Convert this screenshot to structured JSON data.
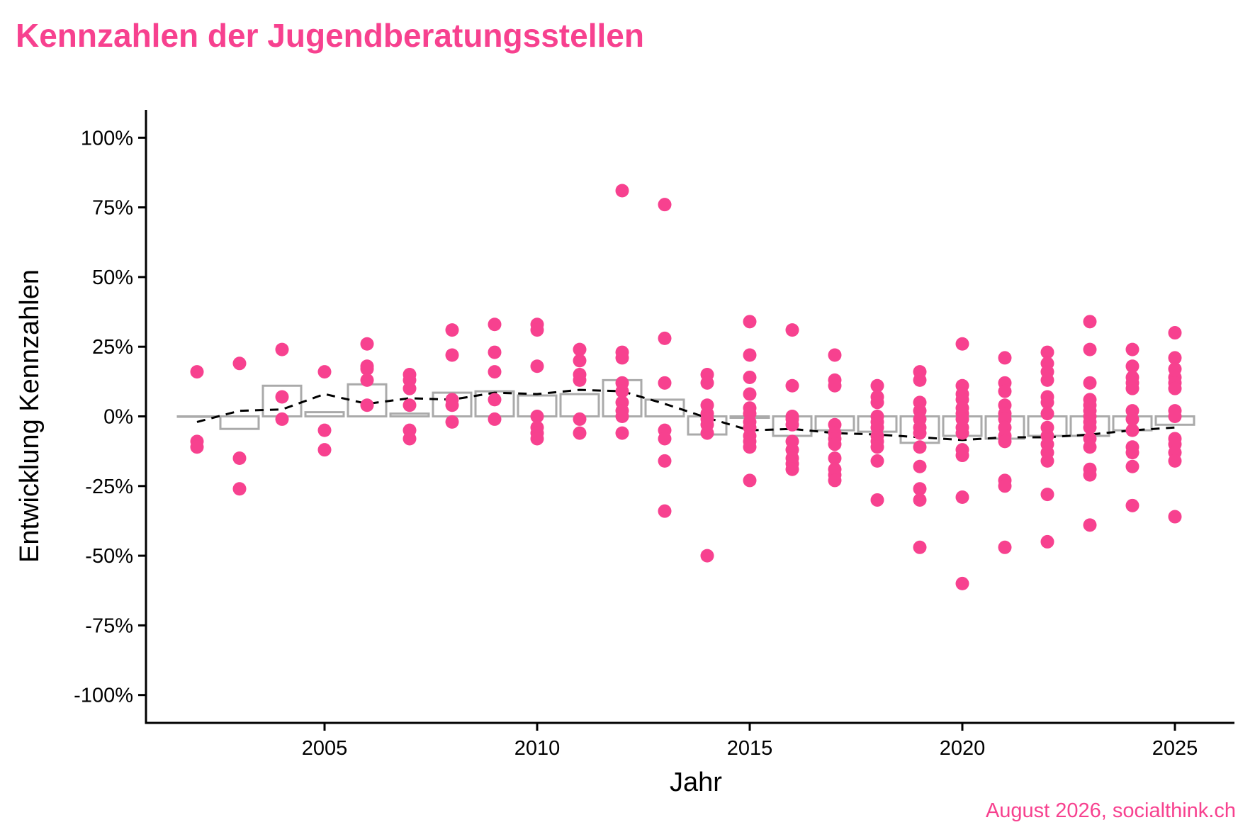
{
  "title": "Kennzahlen der Jugendberatungsstellen",
  "caption": "August 2026, socialthink.ch",
  "colors": {
    "accent": "#f7418f",
    "bar_outline": "#aaaaaa",
    "trend_line": "#000000",
    "axis": "#000000"
  },
  "chart_data": {
    "type": "scatter",
    "title": "Kennzahlen der Jugendberatungsstellen",
    "xlabel": "Jahr",
    "ylabel": "Entwicklung Kennzahlen",
    "xlim": [
      2000.8,
      2026.4
    ],
    "ylim": [
      -1.1,
      1.1
    ],
    "x_ticks": [
      2005,
      2010,
      2015,
      2020,
      2025
    ],
    "x_tick_labels": [
      "2005",
      "2010",
      "2015",
      "2020",
      "2025"
    ],
    "y_ticks": [
      1.0,
      0.75,
      0.5,
      0.25,
      0.0,
      -0.25,
      -0.5,
      -0.75,
      -1.0
    ],
    "y_tick_labels": [
      "100%",
      "75%",
      "50%",
      "25%",
      "0%",
      "-25%",
      "-50%",
      "-75%",
      "-100%"
    ],
    "grid": false,
    "legend": "none",
    "points": [
      {
        "year": 2002,
        "values": [
          0.16,
          -0.09,
          -0.11
        ]
      },
      {
        "year": 2003,
        "values": [
          0.19,
          -0.15,
          -0.26
        ]
      },
      {
        "year": 2004,
        "values": [
          0.24,
          0.07,
          -0.01
        ]
      },
      {
        "year": 2005,
        "values": [
          0.16,
          -0.05,
          -0.12
        ]
      },
      {
        "year": 2006,
        "values": [
          0.26,
          0.18,
          0.17,
          0.13,
          0.04
        ]
      },
      {
        "year": 2007,
        "values": [
          0.15,
          0.13,
          0.1,
          0.04,
          -0.05,
          -0.08
        ]
      },
      {
        "year": 2008,
        "values": [
          0.31,
          0.22,
          0.06,
          0.04,
          -0.02
        ]
      },
      {
        "year": 2009,
        "values": [
          0.33,
          0.23,
          0.16,
          0.06,
          -0.01
        ]
      },
      {
        "year": 2010,
        "values": [
          0.33,
          0.31,
          0.18,
          -0.0,
          -0.04,
          -0.06,
          -0.08
        ]
      },
      {
        "year": 2011,
        "values": [
          0.24,
          0.2,
          0.15,
          0.13,
          -0.01,
          -0.06
        ]
      },
      {
        "year": 2012,
        "values": [
          0.81,
          0.23,
          0.21,
          0.12,
          0.09,
          0.05,
          0.02,
          0.0,
          -0.06
        ]
      },
      {
        "year": 2013,
        "values": [
          0.76,
          0.28,
          0.12,
          -0.05,
          -0.08,
          -0.16,
          -0.34
        ]
      },
      {
        "year": 2014,
        "values": [
          0.15,
          0.12,
          0.04,
          0.01,
          -0.01,
          -0.03,
          -0.06,
          -0.5
        ]
      },
      {
        "year": 2015,
        "values": [
          0.34,
          0.22,
          0.14,
          0.08,
          0.03,
          0.01,
          -0.02,
          -0.04,
          -0.07,
          -0.09,
          -0.11,
          -0.23
        ]
      },
      {
        "year": 2016,
        "values": [
          0.31,
          0.11,
          0.0,
          -0.01,
          -0.03,
          -0.09,
          -0.12,
          -0.15,
          -0.17,
          -0.19
        ]
      },
      {
        "year": 2017,
        "values": [
          0.22,
          0.13,
          0.11,
          -0.03,
          -0.06,
          -0.08,
          -0.1,
          -0.15,
          -0.19,
          -0.21,
          -0.23
        ]
      },
      {
        "year": 2018,
        "values": [
          0.11,
          0.07,
          0.05,
          0.0,
          -0.02,
          -0.04,
          -0.07,
          -0.09,
          -0.11,
          -0.16,
          -0.3
        ]
      },
      {
        "year": 2019,
        "values": [
          0.16,
          0.13,
          0.05,
          0.02,
          -0.01,
          -0.04,
          -0.06,
          -0.11,
          -0.18,
          -0.26,
          -0.3,
          -0.47
        ]
      },
      {
        "year": 2020,
        "values": [
          0.26,
          0.11,
          0.08,
          0.06,
          0.03,
          0.01,
          -0.01,
          -0.04,
          -0.06,
          -0.12,
          -0.14,
          -0.29,
          -0.6
        ]
      },
      {
        "year": 2021,
        "values": [
          0.21,
          0.12,
          0.09,
          0.04,
          0.01,
          -0.01,
          -0.04,
          -0.07,
          -0.09,
          -0.23,
          -0.25,
          -0.47
        ]
      },
      {
        "year": 2022,
        "values": [
          0.23,
          0.19,
          0.16,
          0.13,
          0.07,
          0.05,
          0.01,
          -0.04,
          -0.07,
          -0.1,
          -0.13,
          -0.16,
          -0.28,
          -0.45
        ]
      },
      {
        "year": 2023,
        "values": [
          0.34,
          0.24,
          0.12,
          0.06,
          0.04,
          0.02,
          0.0,
          -0.02,
          -0.04,
          -0.08,
          -0.11,
          -0.19,
          -0.21,
          -0.39
        ]
      },
      {
        "year": 2024,
        "values": [
          0.24,
          0.18,
          0.14,
          0.12,
          0.1,
          0.02,
          -0.01,
          -0.05,
          -0.11,
          -0.13,
          -0.18,
          -0.32
        ]
      },
      {
        "year": 2025,
        "values": [
          0.3,
          0.21,
          0.17,
          0.14,
          0.12,
          0.1,
          0.02,
          0.0,
          -0.08,
          -0.1,
          -0.13,
          -0.16,
          -0.36
        ]
      }
    ],
    "bars": {
      "name": "",
      "x": [
        2002,
        2003,
        2004,
        2005,
        2006,
        2007,
        2008,
        2009,
        2010,
        2011,
        2012,
        2013,
        2014,
        2015,
        2016,
        2017,
        2018,
        2019,
        2020,
        2021,
        2022,
        2023,
        2024,
        2025
      ],
      "values": [
        0.0,
        -0.045,
        0.11,
        0.015,
        0.115,
        0.01,
        0.085,
        0.09,
        0.075,
        0.08,
        0.13,
        0.06,
        -0.065,
        -0.005,
        -0.07,
        -0.05,
        -0.055,
        -0.095,
        -0.07,
        -0.08,
        -0.07,
        -0.07,
        -0.05,
        -0.03
      ]
    },
    "trend_line": {
      "name": "",
      "x": [
        2002,
        2003,
        2004,
        2005,
        2006,
        2007,
        2008,
        2009,
        2010,
        2011,
        2012,
        2013,
        2014,
        2015,
        2016,
        2017,
        2018,
        2019,
        2020,
        2021,
        2022,
        2023,
        2024,
        2025
      ],
      "values": [
        -0.02,
        0.02,
        0.025,
        0.08,
        0.045,
        0.065,
        0.06,
        0.085,
        0.08,
        0.095,
        0.09,
        0.045,
        -0.005,
        -0.05,
        -0.045,
        -0.06,
        -0.065,
        -0.075,
        -0.085,
        -0.075,
        -0.075,
        -0.065,
        -0.05,
        -0.04
      ]
    }
  }
}
